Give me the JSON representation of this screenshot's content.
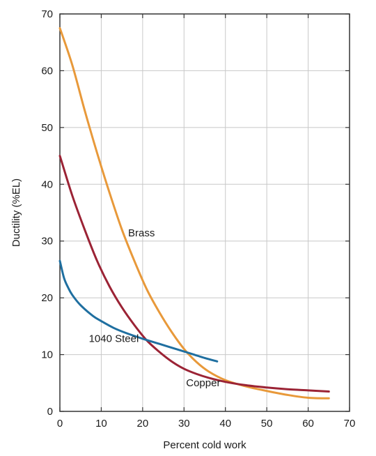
{
  "chart_data": {
    "type": "line",
    "title": "",
    "xlabel": "Percent cold work",
    "ylabel": "Ductility (%EL)",
    "xlim": [
      0,
      70
    ],
    "ylim": [
      0,
      70
    ],
    "xticks": [
      0,
      10,
      20,
      30,
      40,
      50,
      60,
      70
    ],
    "yticks": [
      0,
      10,
      20,
      30,
      40,
      50,
      60,
      70
    ],
    "grid": true,
    "series": [
      {
        "name": "Brass",
        "color": "#e8993a",
        "x": [
          0,
          3,
          6,
          9,
          12,
          15,
          18,
          21,
          24,
          27,
          30,
          33,
          36,
          40,
          45,
          50,
          55,
          60,
          65
        ],
        "y": [
          67.5,
          61,
          53,
          45.5,
          38.5,
          32,
          26.5,
          21.5,
          17.5,
          14,
          11,
          8.7,
          7,
          5.5,
          4.4,
          3.6,
          2.9,
          2.4,
          2.3
        ]
      },
      {
        "name": "Copper",
        "color": "#9b2335",
        "x": [
          0,
          3,
          6,
          9,
          12,
          15,
          18,
          21,
          24,
          27,
          30,
          33,
          36,
          40,
          45,
          50,
          55,
          60,
          65
        ],
        "y": [
          45,
          38,
          32,
          26.5,
          22,
          18.3,
          15.2,
          12.5,
          10.5,
          8.8,
          7.5,
          6.6,
          5.9,
          5.2,
          4.6,
          4.2,
          3.9,
          3.7,
          3.5
        ]
      },
      {
        "name": "1040 Steel",
        "color": "#1f6fa0",
        "x": [
          0,
          1,
          2,
          3,
          5,
          8,
          10,
          13,
          16,
          20,
          24,
          28,
          32,
          35,
          38
        ],
        "y": [
          26.5,
          23.5,
          21.8,
          20.5,
          18.7,
          16.8,
          15.9,
          14.7,
          13.8,
          12.8,
          11.9,
          11,
          10.1,
          9.4,
          8.8
        ]
      }
    ],
    "annotations": [
      {
        "text": "Brass",
        "x": 16.5,
        "y": 30.8
      },
      {
        "text": "1040 Steel",
        "x": 7,
        "y": 12.2
      },
      {
        "text": "Copper",
        "x": 30.5,
        "y": 4.4
      }
    ]
  }
}
